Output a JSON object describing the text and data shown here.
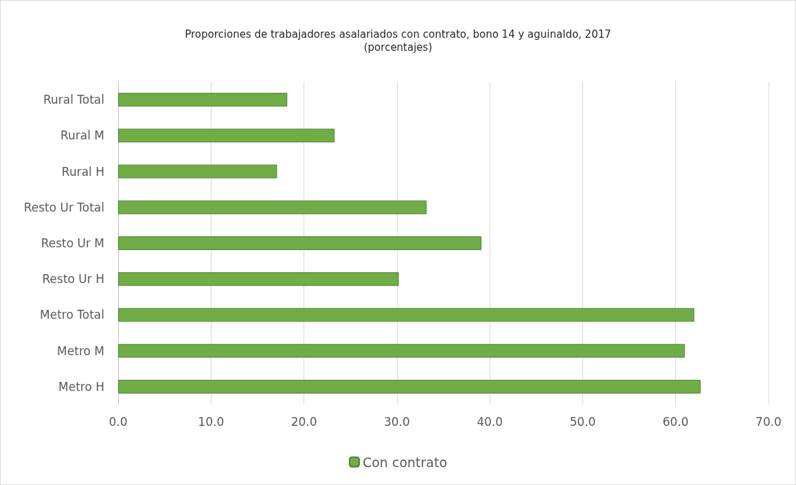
{
  "chart_data": {
    "type": "bar",
    "orientation": "horizontal",
    "title": "Proporciones de trabajadores asalariados con contrato, bono 14 y aguinaldo, 2017",
    "subtitle": "(porcentajes)",
    "categories": [
      "Rural Total",
      "Rural M",
      "Rural H",
      "Resto Ur Total",
      "Resto Ur M",
      "Resto Ur H",
      "Metro Total",
      "Metro M",
      "Metro H"
    ],
    "series": [
      {
        "name": "Con contrato",
        "color": "#70ad47",
        "values": [
          18.2,
          23.3,
          17.1,
          33.2,
          39.1,
          30.2,
          62.0,
          61.0,
          62.7
        ]
      }
    ],
    "xlim": [
      0,
      70
    ],
    "xticks": [
      {
        "value": 0,
        "label": "0.0"
      },
      {
        "value": 10,
        "label": "10.0"
      },
      {
        "value": 20,
        "label": "20.0"
      },
      {
        "value": 30,
        "label": "30.0"
      },
      {
        "value": 40,
        "label": "40.0"
      },
      {
        "value": 50,
        "label": "50.0"
      },
      {
        "value": 60,
        "label": "60.0"
      },
      {
        "value": 70,
        "label": "70.0"
      }
    ],
    "grid": "x",
    "legend": "bottom"
  }
}
